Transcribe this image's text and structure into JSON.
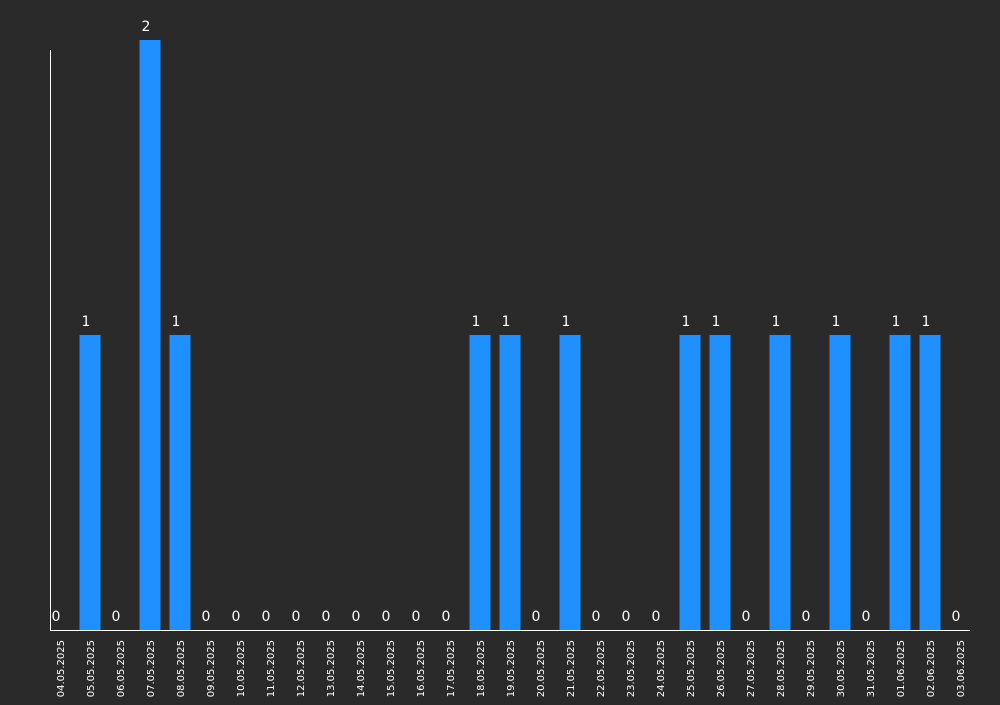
{
  "chart_data": {
    "type": "bar",
    "categories": [
      "04.05.2025",
      "05.05.2025",
      "06.05.2025",
      "07.05.2025",
      "08.05.2025",
      "09.05.2025",
      "10.05.2025",
      "11.05.2025",
      "12.05.2025",
      "13.05.2025",
      "14.05.2025",
      "15.05.2025",
      "16.05.2025",
      "17.05.2025",
      "18.05.2025",
      "19.05.2025",
      "20.05.2025",
      "21.05.2025",
      "22.05.2025",
      "23.05.2025",
      "24.05.2025",
      "25.05.2025",
      "26.05.2025",
      "27.05.2025",
      "28.05.2025",
      "29.05.2025",
      "30.05.2025",
      "31.05.2025",
      "01.06.2025",
      "02.06.2025",
      "03.06.2025"
    ],
    "values": [
      0,
      1,
      0,
      2,
      1,
      0,
      0,
      0,
      0,
      0,
      0,
      0,
      0,
      0,
      1,
      1,
      0,
      1,
      0,
      0,
      0,
      1,
      1,
      0,
      1,
      0,
      1,
      0,
      1,
      1,
      0
    ],
    "ylim": [
      0,
      2
    ],
    "grid": false,
    "bar_color": "#1e90ff",
    "axis_color": "#ffffff",
    "background": "#2a2a2a"
  }
}
